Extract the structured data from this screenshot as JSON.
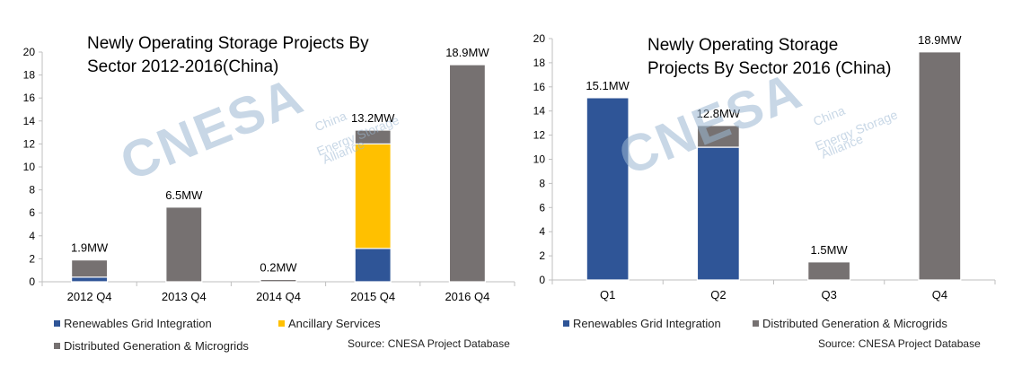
{
  "watermark": {
    "logo_text": "CNESA",
    "lines": [
      "China",
      "Energy Storage",
      "Alliance"
    ]
  },
  "left_chart": {
    "title": "Newly Operating Storage Projects By\nSector 2012-2016(China)",
    "legend": [
      {
        "label": "Renewables Grid Integration",
        "color": "#2f5597"
      },
      {
        "label": "Ancillary Services",
        "color": "#ffc000"
      },
      {
        "label": "Distributed Generation & Microgrids",
        "color": "#767171"
      }
    ],
    "source": "Source: CNESA Project Database"
  },
  "right_chart": {
    "title": "Newly Operating Storage\nProjects By Sector 2016 (China)",
    "legend": [
      {
        "label": "Renewables Grid Integration",
        "color": "#2f5597"
      },
      {
        "label": "Distributed Generation & Microgrids",
        "color": "#767171"
      }
    ],
    "source": "Source: CNESA Project Database"
  },
  "chart_data": [
    {
      "type": "bar",
      "stacked": true,
      "title": "Newly Operating Storage Projects By Sector 2012-2016(China)",
      "categories": [
        "2012 Q4",
        "2013 Q4",
        "2014 Q4",
        "2015 Q4",
        "2016 Q4"
      ],
      "series": [
        {
          "name": "Renewables Grid Integration",
          "color": "#2f5597",
          "values": [
            0.4,
            0,
            0,
            2.9,
            0
          ]
        },
        {
          "name": "Ancillary Services",
          "color": "#ffc000",
          "values": [
            0,
            0,
            0,
            9.1,
            0
          ]
        },
        {
          "name": "Distributed Generation & Microgrids",
          "color": "#767171",
          "values": [
            1.5,
            6.5,
            0.2,
            1.2,
            18.9
          ]
        }
      ],
      "data_labels": [
        "1.9MW",
        "6.5MW",
        "0.2MW",
        "13.2MW",
        "18.9MW"
      ],
      "ylim": [
        0,
        20
      ],
      "yticks": [
        0,
        2,
        4,
        6,
        8,
        10,
        12,
        14,
        16,
        18,
        20
      ],
      "xlabel": "",
      "ylabel": "",
      "grid": false,
      "legend_position": "bottom"
    },
    {
      "type": "bar",
      "stacked": true,
      "title": "Newly Operating Storage Projects By Sector 2016 (China)",
      "categories": [
        "Q1",
        "Q2",
        "Q3",
        "Q4"
      ],
      "series": [
        {
          "name": "Renewables Grid Integration",
          "color": "#2f5597",
          "values": [
            15.1,
            11.0,
            0,
            0
          ]
        },
        {
          "name": "Distributed Generation & Microgrids",
          "color": "#767171",
          "values": [
            0,
            1.8,
            1.5,
            18.9
          ]
        }
      ],
      "data_labels": [
        "15.1MW",
        "12.8MW",
        "1.5MW",
        "18.9MW"
      ],
      "ylim": [
        0,
        20
      ],
      "yticks": [
        0,
        2,
        4,
        6,
        8,
        10,
        12,
        14,
        16,
        18,
        20
      ],
      "xlabel": "",
      "ylabel": "",
      "grid": false,
      "legend_position": "bottom"
    }
  ]
}
